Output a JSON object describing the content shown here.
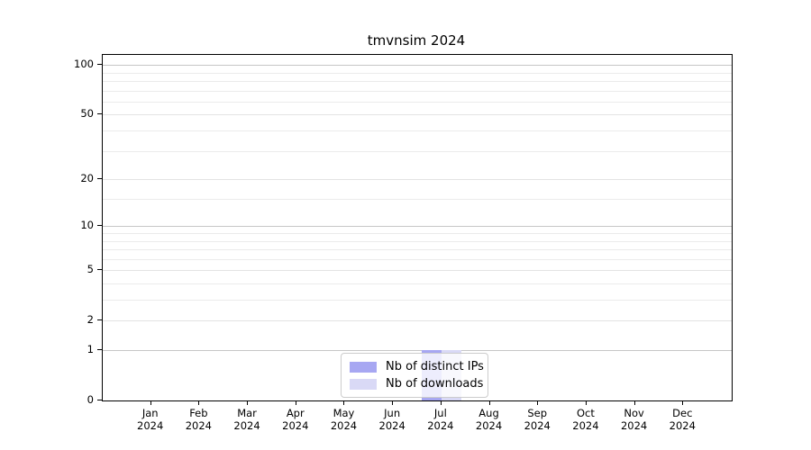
{
  "chart_data": {
    "type": "bar",
    "title": "tmvnsim 2024",
    "x_year": "2024",
    "categories": [
      "Jan",
      "Feb",
      "Mar",
      "Apr",
      "May",
      "Jun",
      "Jul",
      "Aug",
      "Sep",
      "Oct",
      "Nov",
      "Dec"
    ],
    "series": [
      {
        "name": "Nb of distinct IPs",
        "color": "#a7a7f2",
        "values": [
          0,
          0,
          0,
          0,
          0,
          0,
          1,
          0,
          0,
          0,
          0,
          0
        ]
      },
      {
        "name": "Nb of downloads",
        "color": "#d9d9f6",
        "values": [
          0,
          0,
          0,
          0,
          0,
          0,
          1,
          0,
          0,
          0,
          0,
          0
        ]
      }
    ],
    "yticks": [
      0,
      1,
      2,
      5,
      10,
      20,
      50,
      100
    ],
    "minor_yticks": [
      3,
      4,
      6,
      7,
      8,
      9,
      15,
      30,
      40,
      60,
      70,
      80,
      90
    ],
    "emphasized_gridlines": [
      1,
      10,
      100
    ],
    "ylim": [
      0,
      115
    ],
    "scale": "log1p",
    "grid": true,
    "legend_position": "lower center",
    "xlabel": "",
    "ylabel": ""
  },
  "colors": {
    "minor_grid": "#ebebeb",
    "mid_grid": "#e3e3e3",
    "major_grid": "#c6c6c6",
    "spine": "#000000",
    "legend_border": "#cccccc"
  }
}
